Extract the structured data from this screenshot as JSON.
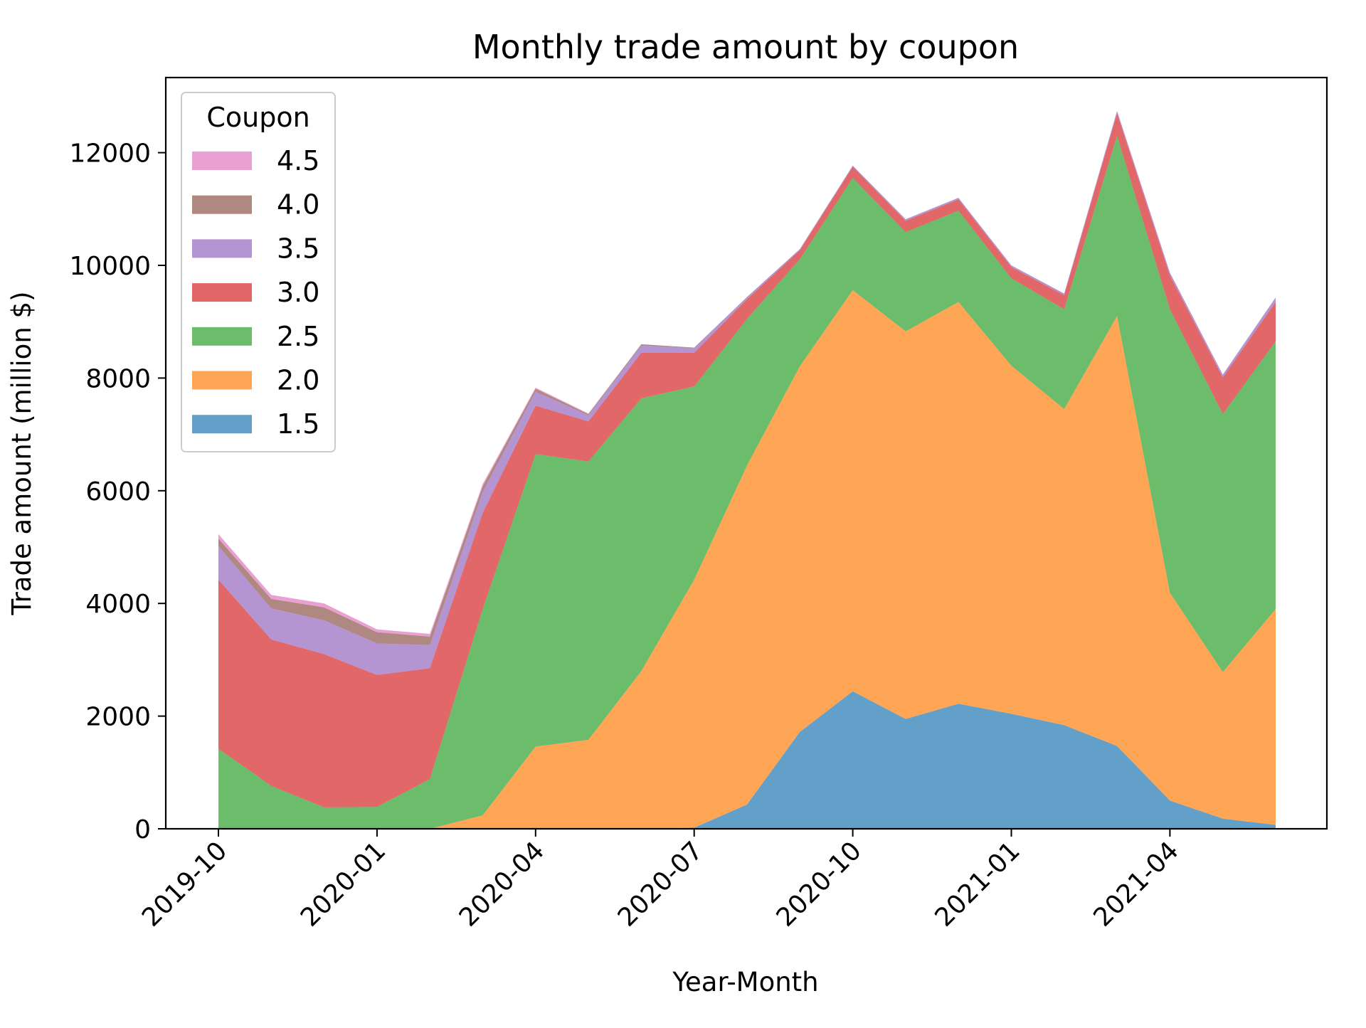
{
  "chart_data": {
    "type": "area",
    "stacked": true,
    "title": "Monthly trade amount by coupon",
    "xlabel": "Year-Month",
    "ylabel": "Trade amount (million $)",
    "x": [
      "2019-10",
      "2019-11",
      "2019-12",
      "2020-01",
      "2020-02",
      "2020-03",
      "2020-04",
      "2020-05",
      "2020-06",
      "2020-07",
      "2020-08",
      "2020-09",
      "2020-10",
      "2020-11",
      "2020-12",
      "2021-01",
      "2021-02",
      "2021-03",
      "2021-04",
      "2021-05",
      "2021-06"
    ],
    "x_tick_labels": [
      "2019-10",
      "2020-01",
      "2020-04",
      "2020-07",
      "2020-10",
      "2021-01",
      "2021-04"
    ],
    "ylim": [
      0,
      13200
    ],
    "y_ticks": [
      0,
      2000,
      4000,
      6000,
      8000,
      10000,
      12000
    ],
    "grid": false,
    "legend": {
      "title": "Coupon",
      "placement": "top-left"
    },
    "series": [
      {
        "name": "1.5",
        "color": "#1f77b4",
        "values": [
          0,
          0,
          0,
          0,
          0,
          0,
          0,
          0,
          0,
          20,
          430,
          1720,
          2440,
          1950,
          2220,
          2040,
          1840,
          1470,
          500,
          180,
          70
        ]
      },
      {
        "name": "2.0",
        "color": "#ff7f0e",
        "values": [
          0,
          0,
          0,
          0,
          0,
          240,
          1460,
          1580,
          2800,
          4400,
          6020,
          6490,
          7120,
          6880,
          7130,
          6180,
          5610,
          7630,
          3690,
          2600,
          3830
        ]
      },
      {
        "name": "2.5",
        "color": "#2ca02c",
        "values": [
          1420,
          760,
          380,
          390,
          880,
          3660,
          5190,
          4940,
          4840,
          3430,
          2600,
          1900,
          1990,
          1760,
          1620,
          1550,
          1770,
          3200,
          5030,
          4580,
          4750
        ]
      },
      {
        "name": "3.0",
        "color": "#d62728",
        "values": [
          3000,
          2600,
          2720,
          2340,
          1970,
          1710,
          860,
          710,
          810,
          600,
          350,
          160,
          200,
          200,
          200,
          200,
          250,
          400,
          600,
          650,
          700
        ]
      },
      {
        "name": "3.5",
        "color": "#9467bd",
        "values": [
          600,
          550,
          600,
          560,
          410,
          370,
          250,
          110,
          130,
          80,
          40,
          20,
          20,
          30,
          30,
          30,
          30,
          40,
          50,
          50,
          80
        ]
      },
      {
        "name": "4.0",
        "color": "#8c564b",
        "values": [
          130,
          170,
          230,
          200,
          150,
          100,
          50,
          20,
          20,
          10,
          0,
          0,
          0,
          0,
          0,
          0,
          0,
          0,
          0,
          0,
          0
        ]
      },
      {
        "name": "4.5",
        "color": "#e377c2",
        "values": [
          80,
          70,
          70,
          50,
          50,
          40,
          20,
          10,
          0,
          0,
          0,
          0,
          0,
          0,
          0,
          0,
          0,
          0,
          0,
          0,
          0
        ]
      }
    ]
  }
}
